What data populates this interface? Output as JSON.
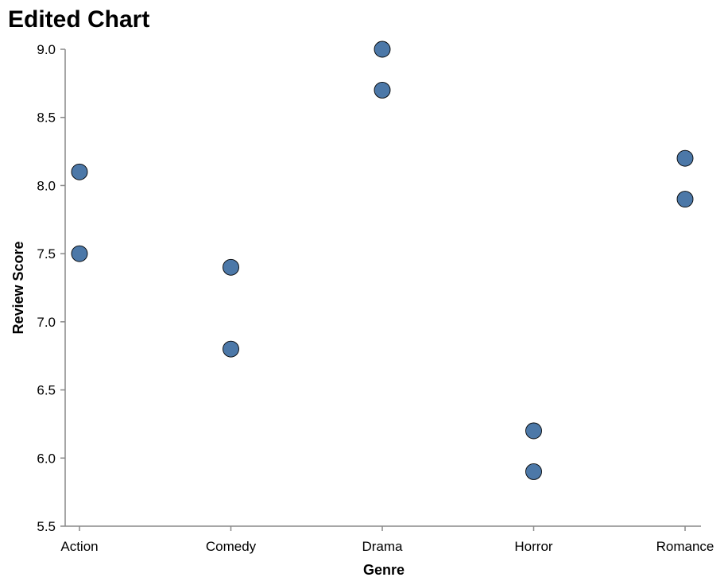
{
  "chart_data": {
    "type": "scatter",
    "title": "Edited Chart",
    "xlabel": "Genre",
    "ylabel": "Review Score",
    "categories": [
      "Action",
      "Comedy",
      "Drama",
      "Horror",
      "Romance"
    ],
    "ylim": [
      5.5,
      9.0
    ],
    "yticks": [
      "5.5",
      "6.0",
      "6.5",
      "7.0",
      "7.5",
      "8.0",
      "8.5",
      "9.0"
    ],
    "points": [
      {
        "x": "Action",
        "y": 8.1
      },
      {
        "x": "Action",
        "y": 7.5
      },
      {
        "x": "Comedy",
        "y": 7.4
      },
      {
        "x": "Comedy",
        "y": 6.8
      },
      {
        "x": "Drama",
        "y": 9.0
      },
      {
        "x": "Drama",
        "y": 8.7
      },
      {
        "x": "Horror",
        "y": 6.2
      },
      {
        "x": "Horror",
        "y": 5.9
      },
      {
        "x": "Romance",
        "y": 8.2
      },
      {
        "x": "Romance",
        "y": 7.9
      }
    ],
    "grid": false,
    "color": "#4c78a8"
  }
}
